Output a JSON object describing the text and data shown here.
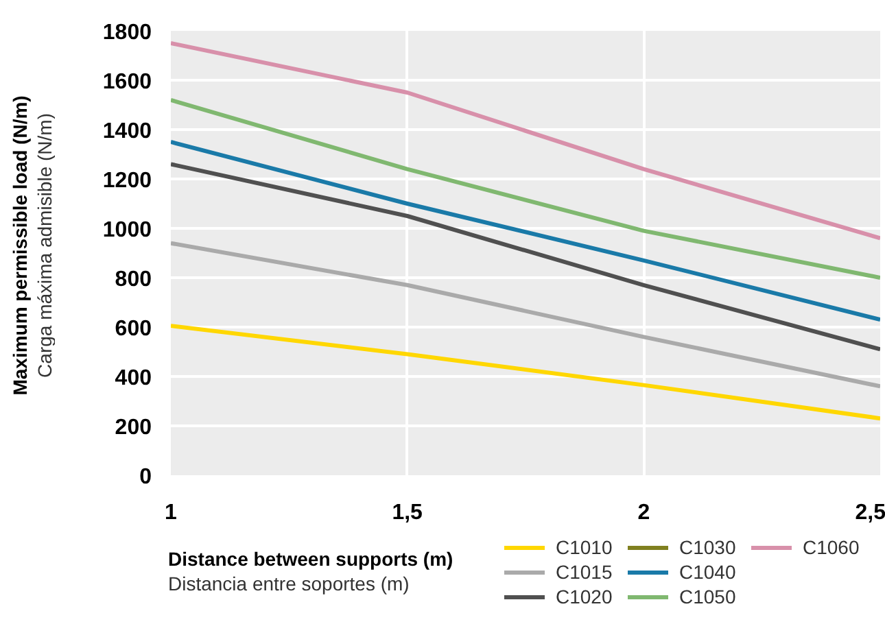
{
  "chart_data": {
    "type": "line",
    "xlabel": "Distance between supports (m)\nDistancia entre soportes (m)",
    "ylabel": "Maximum permissible load (N/m)\nCarga máxima admisible (N/m)",
    "x": [
      1,
      1.5,
      2,
      2.5
    ],
    "series": [
      {
        "name": "C1010",
        "color": "#ffd700",
        "values": [
          605,
          490,
          365,
          230
        ]
      },
      {
        "name": "C1015",
        "color": "#aaaaaa",
        "values": [
          940,
          770,
          560,
          360
        ]
      },
      {
        "name": "C1020",
        "color": "#505050",
        "values": [
          1260,
          1050,
          770,
          510
        ]
      },
      {
        "name": "C1030",
        "color": "#808020",
        "values": [
          null,
          null,
          null,
          null
        ]
      },
      {
        "name": "C1040",
        "color": "#1a7aa8",
        "values": [
          1350,
          1100,
          870,
          630
        ]
      },
      {
        "name": "C1050",
        "color": "#80b870",
        "values": [
          1520,
          1240,
          990,
          800
        ]
      },
      {
        "name": "C1060",
        "color": "#d890aa",
        "values": [
          1750,
          1550,
          1240,
          960
        ]
      }
    ],
    "xlim": [
      1,
      2.5
    ],
    "xticks": [
      1,
      {
        "value": 1.5,
        "label": "1,5"
      },
      2,
      {
        "value": 2.5,
        "label": "2,5"
      }
    ],
    "ylim": [
      0,
      1800
    ],
    "yticks": [
      0,
      200,
      400,
      600,
      800,
      1000,
      1200,
      1400,
      1600,
      1800
    ],
    "grid": true,
    "legend": "bottom right",
    "marker": "none",
    "line_style": "solid"
  }
}
